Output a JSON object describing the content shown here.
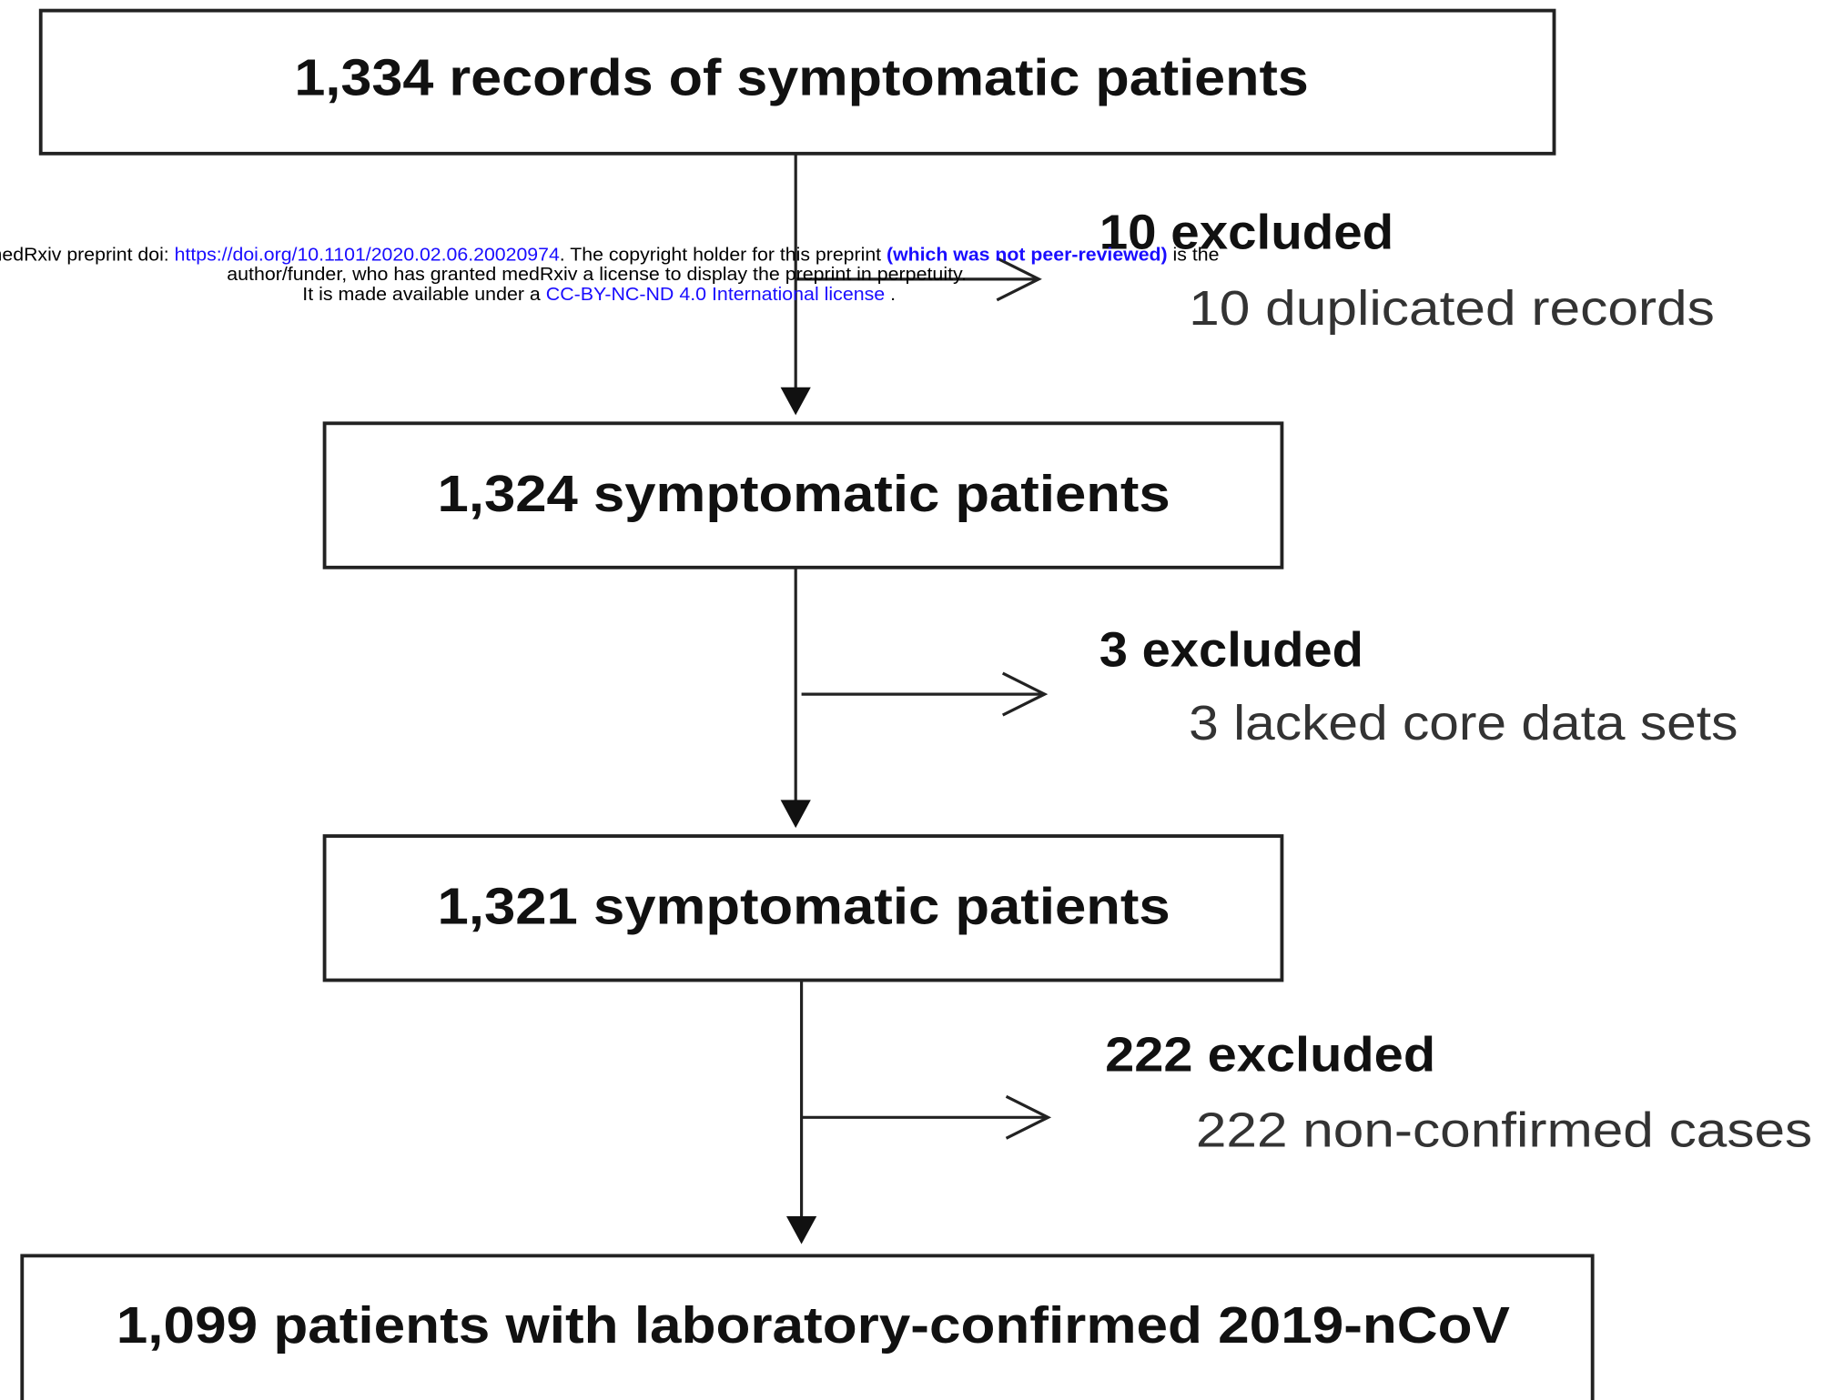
{
  "nodes": [
    {
      "label": "1,334 records of symptomatic patients"
    },
    {
      "label": "1,324 symptomatic patients"
    },
    {
      "label": "1,321 symptomatic patients"
    },
    {
      "label": "1,099 patients with laboratory-confirmed 2019-nCoV"
    }
  ],
  "exclusions": [
    {
      "title": "10 excluded",
      "reason": "10 duplicated records"
    },
    {
      "title": "3 excluded",
      "reason": "3 lacked core data sets"
    },
    {
      "title": "222 excluded",
      "reason": "222 non-confirmed cases"
    }
  ],
  "watermark": {
    "line1": [
      "medRxiv preprint doi: ",
      "https://doi.org/10.1101/2020.02.06.20020974",
      ". The copyright holder for this preprint ",
      "(which was not peer-reviewed)",
      " is the"
    ],
    "line2": "author/funder, who has granted medRxiv a license to display the preprint in perpetuity.",
    "line3": [
      "It is made available under a ",
      "CC-BY-NC-ND 4.0 International license",
      " ."
    ]
  }
}
